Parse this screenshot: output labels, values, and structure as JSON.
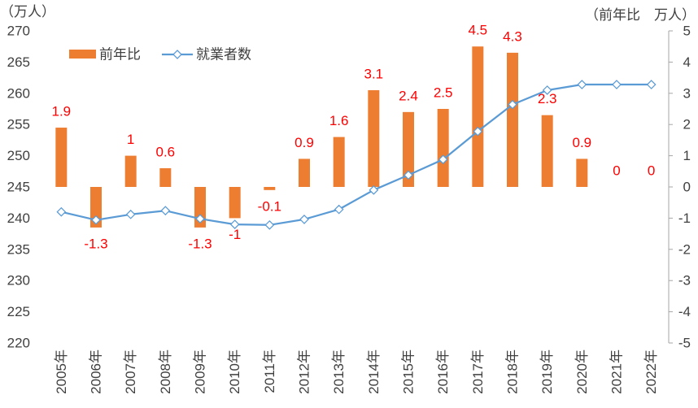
{
  "chart_data": {
    "type": "bar",
    "categories": [
      "2005年",
      "2006年",
      "2007年",
      "2008年",
      "2009年",
      "2010年",
      "2011年",
      "2012年",
      "2013年",
      "2014年",
      "2015年",
      "2016年",
      "2017年",
      "2018年",
      "2019年",
      "2020年",
      "2021年",
      "2022年"
    ],
    "series": [
      {
        "name": "前年比",
        "type": "bar",
        "axis": "right",
        "color": "#ED7D31",
        "values": [
          1.9,
          -1.3,
          1,
          0.6,
          -1.3,
          -1,
          -0.1,
          0.9,
          1.6,
          3.1,
          2.4,
          2.5,
          4.5,
          4.3,
          2.3,
          0.9,
          0,
          0
        ],
        "data_labels": true,
        "label_color": "#FF0000"
      },
      {
        "name": "就業者数",
        "type": "line",
        "axis": "left",
        "color": "#5B9BD5",
        "marker": "diamond",
        "values": [
          241.0,
          239.7,
          240.6,
          241.2,
          239.9,
          239.0,
          238.9,
          239.8,
          241.4,
          244.5,
          246.9,
          249.4,
          253.9,
          258.2,
          260.5,
          261.4,
          261.4,
          261.4
        ]
      }
    ],
    "y_left": {
      "label": "（万人）",
      "range": [
        220,
        270
      ],
      "ticks": [
        270,
        265,
        260,
        255,
        250,
        245,
        240,
        235,
        230,
        225,
        220
      ]
    },
    "y_right": {
      "label": "（前年比　万人）",
      "range": [
        -5,
        5
      ],
      "ticks": [
        5,
        4,
        3,
        2,
        1,
        0,
        -1,
        -2,
        -3,
        -4,
        -5
      ]
    },
    "grid": false,
    "legend": {
      "position": "top-left"
    }
  }
}
